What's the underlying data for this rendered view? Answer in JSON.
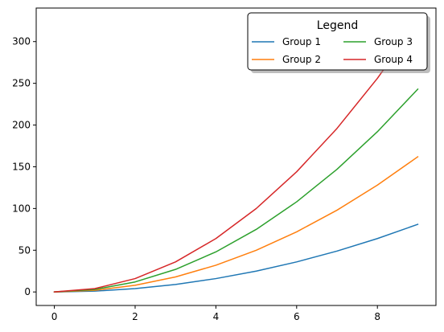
{
  "chart_data": {
    "type": "line",
    "title": "",
    "xlabel": "",
    "ylabel": "",
    "x": [
      0,
      1,
      2,
      3,
      4,
      5,
      6,
      7,
      8,
      9
    ],
    "xlim": [
      -0.45,
      9.45
    ],
    "ylim": [
      -16.2,
      340.2
    ],
    "xticks": [
      0,
      2,
      4,
      6,
      8
    ],
    "yticks": [
      0,
      50,
      100,
      150,
      200,
      250,
      300
    ],
    "grid": false,
    "legend": {
      "title": "Legend",
      "placement": "top-right",
      "columns": 2
    },
    "series": [
      {
        "name": "Group 1",
        "color": "#1f77b4",
        "values": [
          0,
          1,
          4,
          9,
          16,
          25,
          36,
          49,
          64,
          81
        ]
      },
      {
        "name": "Group 2",
        "color": "#ff7f0e",
        "values": [
          0,
          2,
          8,
          18,
          32,
          50,
          72,
          98,
          128,
          162
        ]
      },
      {
        "name": "Group 3",
        "color": "#2ca02c",
        "values": [
          0,
          3,
          12,
          27,
          48,
          75,
          108,
          147,
          192,
          243
        ]
      },
      {
        "name": "Group 4",
        "color": "#d62728",
        "values": [
          0,
          4,
          16,
          36,
          64,
          100,
          144,
          196,
          256,
          324
        ]
      }
    ]
  }
}
